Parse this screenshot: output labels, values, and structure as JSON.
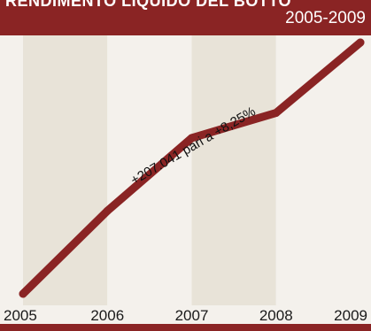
{
  "header": {
    "title": "RENDIMENTO LIQUIDO DEL BOTTO",
    "period": "2005-2009"
  },
  "chart_data": {
    "type": "line",
    "x": [
      "2005",
      "2006",
      "2007",
      "2008",
      "2009"
    ],
    "series": [
      {
        "values": [
          0,
          0.33,
          0.62,
          0.72,
          1.0
        ]
      }
    ],
    "annotations": [
      {
        "text": "+207.041 pari a +8,25%",
        "from": "2006",
        "to": "2008"
      }
    ],
    "grid": false,
    "legend": "none",
    "colors": {
      "line": "#8a2424",
      "band": "#e8e3d8",
      "band_alt": "#f4f1ec"
    }
  }
}
